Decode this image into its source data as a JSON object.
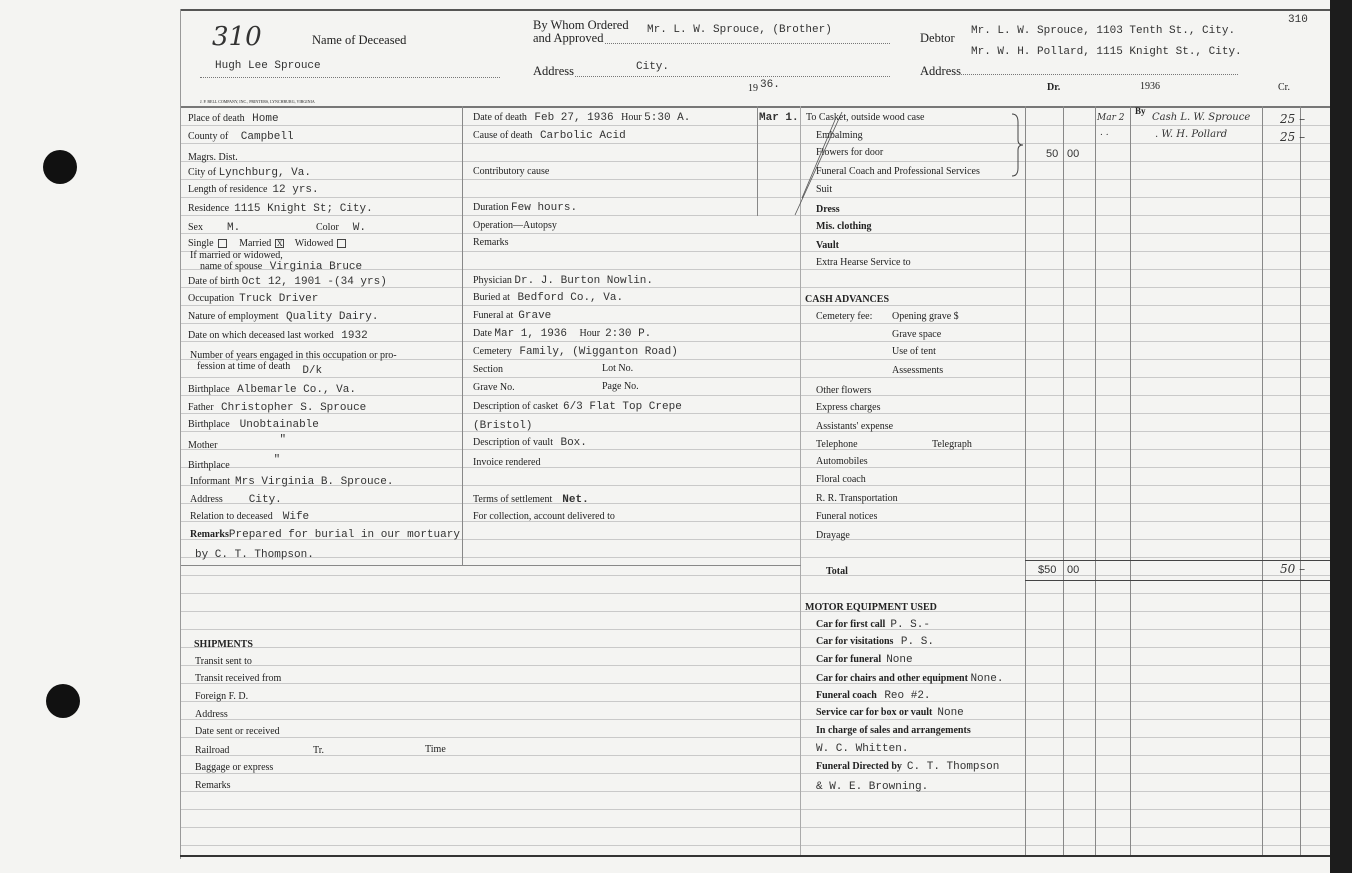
{
  "header": {
    "record_number_handwritten": "310",
    "record_number_stamped": "310",
    "name_label": "Name of Deceased",
    "name_value": "Hugh Lee Sprouce",
    "ordered_label_1": "By Whom Ordered",
    "ordered_label_2": "and Approved",
    "ordered_value": "Mr. L. W. Sprouce, (Brother)",
    "address_label": "Address",
    "address_value": "City.",
    "year_prefix": "19",
    "year_value": "36.",
    "debtor_label": "Debtor",
    "debtor_value_1": "Mr. L. W. Sprouce, 1103 Tenth St., City.",
    "debtor_value_2": "Mr. W. H. Pollard, 1115 Knight St., City.",
    "debtor_address_label": "Address",
    "dr_label": "Dr.",
    "dr_year": "1936",
    "cr_label": "Cr.",
    "printer": "J. P. BELL COMPANY, INC., PRINTERS, LYNCHBURG, VIRGINIA"
  },
  "left": {
    "place_of_death": {
      "label": "Place of death",
      "value": "Home"
    },
    "county": {
      "label": "County of",
      "value": "Campbell"
    },
    "magrs": {
      "label": "Magrs. Dist."
    },
    "city": {
      "label": "City of",
      "value": "Lynchburg, Va."
    },
    "length": {
      "label": "Length of residence",
      "value": "12 yrs."
    },
    "residence": {
      "label": "Residence",
      "value": "1115 Knight St; City."
    },
    "sex": {
      "label": "Sex",
      "value": "M."
    },
    "color": {
      "label": "Color",
      "value": "W."
    },
    "single": {
      "label": "Single",
      "checked": false
    },
    "married": {
      "label": "Married",
      "checked": true,
      "mark": "X"
    },
    "widowed": {
      "label": "Widowed",
      "checked": false
    },
    "spouse": {
      "label_1": "If married or widowed,",
      "label_2": "name of spouse",
      "value": "Virginia Bruce"
    },
    "dob": {
      "label": "Date of birth",
      "value": "Oct 12, 1901 -(34 yrs)"
    },
    "occupation": {
      "label": "Occupation",
      "value": "Truck Driver"
    },
    "employment": {
      "label": "Nature of employment",
      "value": "Quality Dairy."
    },
    "last_worked": {
      "label": "Date on which deceased last worked",
      "value": "1932"
    },
    "years_engaged": {
      "label_1": "Number of years engaged in this occupation or pro-",
      "label_2": "fession at time of death",
      "value": "D/k"
    },
    "birthplace": {
      "label": "Birthplace",
      "value": "Albemarle Co., Va."
    },
    "father": {
      "label": "Father",
      "value": "Christopher S. Sprouce"
    },
    "father_birthplace": {
      "label": "Birthplace",
      "value": "Unobtainable"
    },
    "mother": {
      "label": "Mother",
      "value": "\""
    },
    "mother_birthplace": {
      "label": "Birthplace",
      "value": "\""
    },
    "informant": {
      "label": "Informant",
      "value": "Mrs Virginia B. Sprouce."
    },
    "informant_address": {
      "label": "Address",
      "value": "City."
    },
    "relation": {
      "label": "Relation to deceased",
      "value": "Wife"
    },
    "remarks": {
      "label": "Remarks",
      "value_1": "Prepared for burial in our mortuary",
      "value_2": "by C. T. Thompson."
    }
  },
  "middle": {
    "date_of_death": {
      "label": "Date of death",
      "value": "Feb 27, 1936",
      "hour_label": "Hour",
      "hour_value": "5:30 A."
    },
    "cause": {
      "label": "Cause of death",
      "value": "Carbolic Acid"
    },
    "contributory": {
      "label": "Contributory cause"
    },
    "duration": {
      "label": "Duration",
      "value": "Few hours."
    },
    "operation": {
      "label": "Operation—Autopsy"
    },
    "remarks": {
      "label": "Remarks"
    },
    "physician": {
      "label": "Physician",
      "value": "Dr. J. Burton Nowlin."
    },
    "buried": {
      "label": "Buried at",
      "value": "Bedford Co., Va."
    },
    "funeral_at": {
      "label": "Funeral at",
      "value": "Grave"
    },
    "date": {
      "label": "Date",
      "value": "Mar 1, 1936",
      "hour_label": "Hour",
      "hour_value": "2:30 P."
    },
    "cemetery": {
      "label": "Cemetery",
      "value": "Family, (Wigganton Road)"
    },
    "section": {
      "label": "Section",
      "lot_label": "Lot No."
    },
    "grave": {
      "label": "Grave No.",
      "page_label": "Page No."
    },
    "casket": {
      "label": "Description of casket",
      "value_1": "6/3 Flat Top Crepe",
      "value_2": "(Bristol)"
    },
    "vault": {
      "label": "Description of vault",
      "value": "Box."
    },
    "invoice": {
      "label": "Invoice rendered"
    },
    "terms": {
      "label": "Terms of settlement",
      "value": "Net."
    },
    "collection": {
      "label": "For collection, account delivered to"
    }
  },
  "charges": {
    "date": "Mar 1.",
    "items": [
      "To Casket, outside wood case",
      "Embalming",
      "Flowers for door",
      "Funeral Coach and Professional Services",
      "Suit",
      "Dress",
      "Mis. clothing",
      "Vault",
      "Extra Hearse Service to"
    ],
    "amount_dollars": "50",
    "amount_cents": "00",
    "cash_advances_title": "CASH ADVANCES",
    "cemetery_fee": "Cemetery fee:",
    "opening_grave": "Opening grave $",
    "grave_space": "Grave space",
    "use_of_tent": "Use of tent",
    "assessments": "Assessments",
    "other": [
      "Other flowers",
      "Express charges",
      "Assistants' expense",
      "Telephone",
      "Automobiles",
      "Floral coach",
      "R. R. Transportation",
      "Funeral notices",
      "Drayage"
    ],
    "telegraph": "Telegraph",
    "total_label": "Total",
    "total_dollars": "$50",
    "total_cents": "00",
    "credit_total": "50 –"
  },
  "credits": {
    "by_label": "By",
    "rows": [
      {
        "date": "Mar 2",
        "by": "Cash L. W. Sprouce",
        "amount": "25 –"
      },
      {
        "date": ". .",
        "by": ". W. H. Pollard",
        "amount": "25 –"
      }
    ]
  },
  "motor": {
    "title": "MOTOR EQUIPMENT USED",
    "first_call": {
      "label": "Car for first call",
      "value": "P. S.-"
    },
    "visitations": {
      "label": "Car for visitations",
      "value": "P. S."
    },
    "funeral": {
      "label": "Car for funeral",
      "value": "None"
    },
    "chairs": {
      "label": "Car for chairs and other equipment",
      "value": "None."
    },
    "coach": {
      "label": "Funeral coach",
      "value": "Reo #2."
    },
    "service": {
      "label": "Service car for box or vault",
      "value": "None"
    },
    "charge": {
      "label": "In charge of sales and arrangements",
      "value": "W. C. Whitten."
    },
    "directed": {
      "label": "Funeral Directed by",
      "value_1": "C. T. Thompson",
      "value_2": "& W. E. Browning."
    }
  },
  "shipments": {
    "title": "SHIPMENTS",
    "fields": [
      "Transit sent to",
      "Transit received from",
      "Foreign F. D.",
      "Address",
      "Date sent or received",
      "Railroad",
      "Baggage or express",
      "Remarks"
    ],
    "tr": "Tr.",
    "time": "Time"
  }
}
